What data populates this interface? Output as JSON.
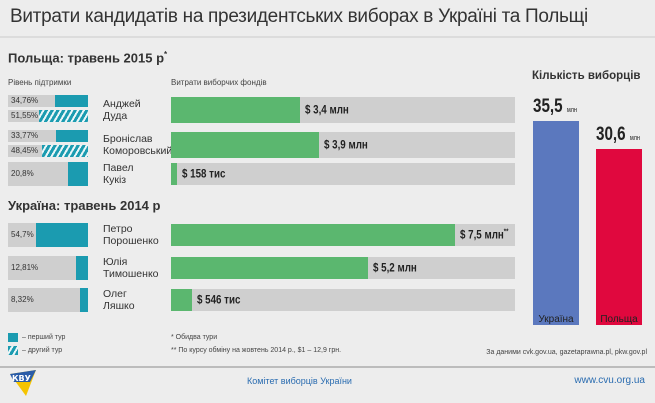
{
  "title": "Витрати кандидатів на президентських виборах в Україні та Польщі",
  "poland": {
    "heading": "Польща: травень 2015 р",
    "heading_mark": "*",
    "support_label": "Рівень підтримки",
    "spending_label": "Витрати виборчих фондів"
  },
  "ukraine": {
    "heading": "Україна: травень 2014 р"
  },
  "chart_data": [
    {
      "type": "bar",
      "title": "Рівень підтримки",
      "unit": "%",
      "candidates": [
        {
          "name": [
            "Анджей",
            "Дуда"
          ],
          "country": "Польща",
          "first_round": 34.76,
          "first_label": "34,76%",
          "second_round": 51.55,
          "second_label": "51,55%"
        },
        {
          "name": [
            "Броніслав",
            "Коморовський"
          ],
          "country": "Польща",
          "first_round": 33.77,
          "first_label": "33,77%",
          "second_round": 48.45,
          "second_label": "48,45%"
        },
        {
          "name": [
            "Павел",
            "Кукіз"
          ],
          "country": "Польща",
          "first_round": 20.8,
          "first_label": "20,8%"
        },
        {
          "name": [
            "Петро",
            "Порошенко"
          ],
          "country": "Україна",
          "first_round": 54.7,
          "first_label": "54,7%"
        },
        {
          "name": [
            "Юлія",
            "Тимошенко"
          ],
          "country": "Україна",
          "first_round": 12.81,
          "first_label": "12,81%"
        },
        {
          "name": [
            "Олег",
            "Ляшко"
          ],
          "country": "Україна",
          "first_round": 8.32,
          "first_label": "8,32%"
        }
      ]
    },
    {
      "type": "bar",
      "title": "Витрати виборчих фондів",
      "unit": "млн $",
      "values": [
        3.4,
        3.9,
        0.158,
        7.5,
        5.2,
        0.546
      ],
      "labels": [
        "$ 3,4 млн",
        "$ 3,9 млн",
        "$ 158 тис",
        "$ 7,5 млн",
        "$ 5,2 млн",
        "$ 546 тис"
      ],
      "marks": [
        "",
        "",
        "",
        "**",
        "",
        ""
      ]
    },
    {
      "type": "bar",
      "title": "Кількість виборців",
      "categories": [
        "Україна",
        "Польща"
      ],
      "values": [
        35.5,
        30.6
      ],
      "labels": [
        "35,5",
        "30,6"
      ],
      "unit": "млн",
      "colors": [
        "#5b78be",
        "#e0083e"
      ]
    }
  ],
  "legend": {
    "first": "– перший тур",
    "second": "– другий тур"
  },
  "notes": {
    "n1": "* Обидва тури",
    "n2": "** По курсу обміну на жовтень 2014 р., $1 – 12,9 грн."
  },
  "source": "За даними cvk.gov.ua, gazetaprawna.pl, pkw.gov.pl",
  "footer": {
    "org": "Комітет виборців України",
    "url": "www.cvu.org.ua",
    "logo_text": "КВУ"
  },
  "colors": {
    "support": "#1b9bb0",
    "spending": "#5bb76f",
    "track": "#cfcfcf"
  }
}
